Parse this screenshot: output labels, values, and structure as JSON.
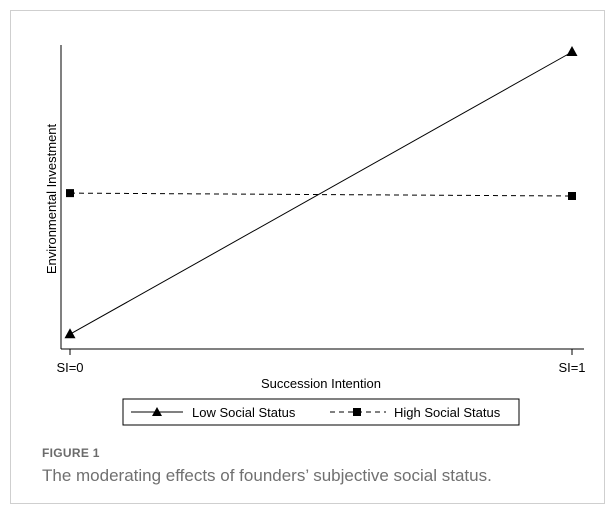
{
  "figure": {
    "label": "FIGURE 1",
    "caption": "The moderating effects of founders’ subjective social status."
  },
  "chart_data": {
    "type": "line",
    "title": "",
    "xlabel": "Succession Intention",
    "ylabel": "Environmental Investment",
    "categories": [
      "SI=0",
      "SI=1"
    ],
    "ylim": [
      0,
      1
    ],
    "y_ticks_shown": false,
    "grid": false,
    "legend_position": "bottom",
    "series": [
      {
        "name": "Low Social Status",
        "values": [
          0.02,
          1.0
        ],
        "style": "solid",
        "marker": "triangle",
        "color": "#000000"
      },
      {
        "name": "High Social Status",
        "values": [
          0.51,
          0.5
        ],
        "style": "dashed",
        "marker": "square",
        "color": "#000000"
      }
    ]
  }
}
